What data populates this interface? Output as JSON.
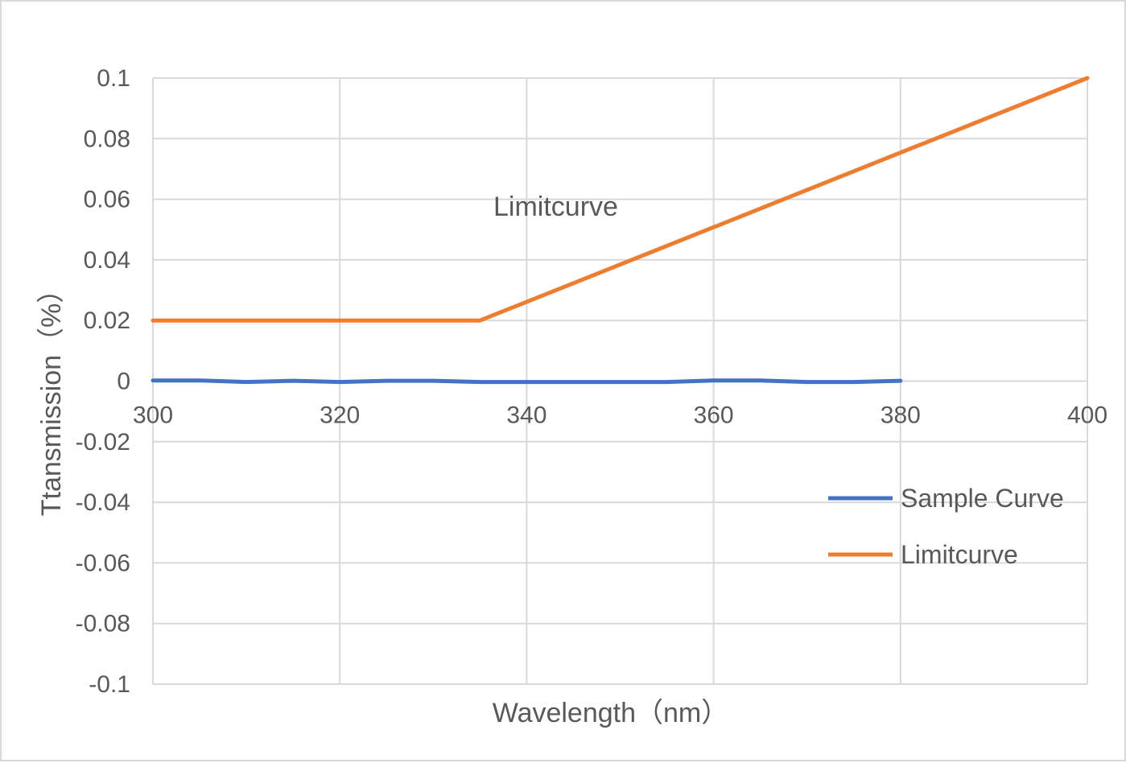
{
  "chart_data": {
    "type": "line",
    "xlabel": "Wavelength（nm）",
    "ylabel": "Ttansmission（%）",
    "xlim": [
      300,
      400
    ],
    "ylim": [
      -0.1,
      0.1
    ],
    "xticks": [
      300,
      320,
      340,
      360,
      380,
      400
    ],
    "xtick_labels": [
      "300",
      "320",
      "340",
      "360",
      "380",
      "400"
    ],
    "yticks": [
      0.1,
      0.08,
      0.06,
      0.04,
      0.02,
      0,
      -0.02,
      -0.04,
      -0.06,
      -0.08,
      -0.1
    ],
    "ytick_labels": [
      "0.1",
      "0.08",
      "0.06",
      "0.04",
      "0.02",
      "0",
      "-0.02",
      "-0.04",
      "-0.06",
      "-0.08",
      "-0.1"
    ],
    "grid": true,
    "legend_position": "lower-right",
    "annotation": "Limitcurve",
    "series": [
      {
        "name": "Sample Curve",
        "color": "#4472C4",
        "x": [
          300,
          305,
          310,
          315,
          320,
          325,
          330,
          335,
          340,
          345,
          350,
          355,
          360,
          365,
          370,
          375,
          380
        ],
        "y": [
          0.0002,
          0.0002,
          -0.0003,
          0.0001,
          -0.0003,
          0.0001,
          0.0001,
          -0.0003,
          -0.0003,
          -0.0003,
          -0.0003,
          -0.0003,
          0.0002,
          0.0002,
          -0.0003,
          -0.0003,
          0.0001
        ]
      },
      {
        "name": "Limitcurve",
        "color": "#ED7D31",
        "x": [
          300,
          335,
          400
        ],
        "y": [
          0.02,
          0.02,
          0.1
        ]
      }
    ]
  }
}
